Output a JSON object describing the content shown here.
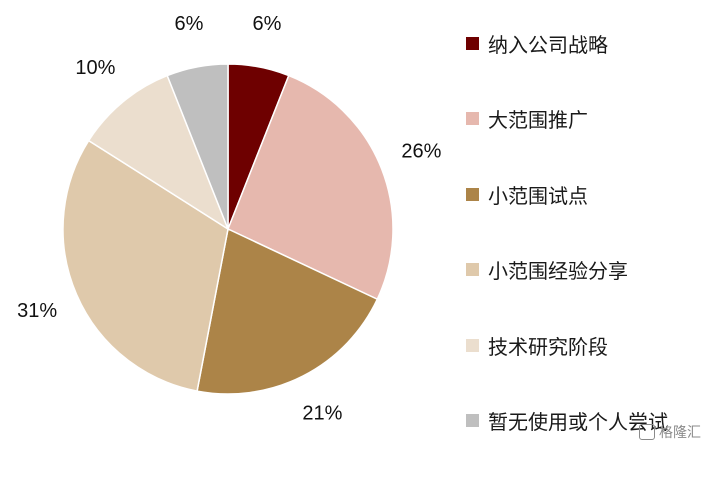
{
  "chart_data": {
    "type": "pie",
    "title": "",
    "categories": [
      "纳入公司战略",
      "大范围推广",
      "小范围试点",
      "小范围经验分享",
      "技术研究阶段",
      "暂无使用或个人尝试"
    ],
    "values": [
      6,
      26,
      21,
      31,
      10,
      6
    ],
    "value_labels": [
      "6%",
      "26%",
      "21%",
      "31%",
      "10%",
      "6%"
    ],
    "colors": [
      "#6e0000",
      "#e6b8ae",
      "#ac8448",
      "#dfc9ab",
      "#ebdece",
      "#bfbfbf"
    ],
    "start_angle": "12 o'clock",
    "direction": "clockwise",
    "legend_position": "right"
  },
  "watermark": {
    "text": "格隆汇",
    "name": "logo-watermark"
  }
}
